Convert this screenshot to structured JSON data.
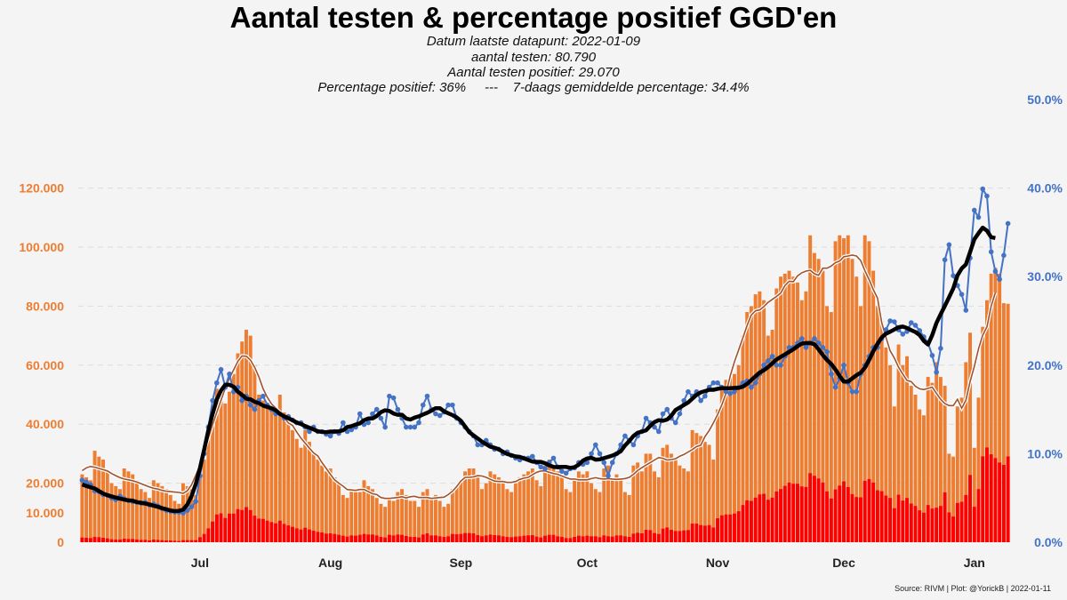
{
  "title": "Aantal testen & percentage positief GGD'en",
  "subtitle": {
    "line1": "Datum laatste datapunt: 2022-01-09",
    "line2": "aantal testen: 80.790",
    "line3": "Aantal testen positief: 29.070",
    "line4": "Percentage positief: 36%     ---    7-daags gemiddelde percentage: 34.4%"
  },
  "source": "Source: RIVM | Plot: @YorickB |  2022-01-11",
  "colors": {
    "tests": "#ED7D31",
    "positive": "#FF0000",
    "pct": "#4472C4",
    "pct_avg": "#000000",
    "tests_avg": "#A0522D"
  },
  "chart_data": {
    "type": "bar+line",
    "title": "Aantal testen & percentage positief GGD'en",
    "x_start_date": "2021-06-03",
    "x_end_date": "2022-01-09",
    "x_ticks": [
      {
        "label": "Jul",
        "date": "2021-07-01"
      },
      {
        "label": "Aug",
        "date": "2021-08-01"
      },
      {
        "label": "Sep",
        "date": "2021-09-01"
      },
      {
        "label": "Oct",
        "date": "2021-10-01"
      },
      {
        "label": "Nov",
        "date": "2021-11-01"
      },
      {
        "label": "Dec",
        "date": "2021-12-01"
      },
      {
        "label": "Jan",
        "date": "2022-01-01"
      }
    ],
    "y_left": {
      "range": [
        0,
        150000
      ],
      "ticks": [
        0,
        10000,
        20000,
        40000,
        60000,
        80000,
        100000,
        120000
      ],
      "tick_labels": [
        "0",
        "10.000",
        "20.000",
        "40.000",
        "60.000",
        "80.000",
        "100.000",
        "120.000"
      ]
    },
    "y_right": {
      "range": [
        0,
        50
      ],
      "ticks": [
        0,
        10,
        20,
        30,
        40,
        50
      ],
      "tick_labels": [
        "0.0%",
        "10.0%",
        "20.0%",
        "30.0%",
        "40.0%",
        "50.0%"
      ]
    },
    "grid": "horizontal dashed at left-axis ticks",
    "series_units": "tests and positive in thousands, pct in percent",
    "series": [
      {
        "name": "aantal testen",
        "type": "bar",
        "values": [
          23,
          22,
          21,
          31,
          29,
          28,
          24,
          20,
          19,
          18,
          25,
          24,
          23,
          21,
          18,
          17,
          15,
          21,
          20,
          19,
          18,
          16,
          14,
          13,
          20,
          19,
          18,
          16,
          22,
          28,
          36,
          44,
          52,
          50,
          47,
          51,
          57,
          64,
          68,
          72,
          70,
          60,
          50,
          48,
          47,
          45,
          44,
          50,
          44,
          40,
          38,
          35,
          32,
          38,
          34,
          30,
          28,
          26,
          24,
          25,
          22,
          20,
          16,
          15,
          18,
          17,
          17,
          21,
          19,
          18,
          15,
          13,
          12,
          15,
          14,
          17,
          18,
          16,
          14,
          14,
          12,
          17,
          18,
          15,
          16,
          14,
          12,
          13,
          18,
          19,
          21,
          24,
          25,
          25,
          22,
          18,
          20,
          24,
          23,
          22,
          20,
          18,
          17,
          20,
          22,
          23,
          24,
          25,
          21,
          19,
          26,
          28,
          26,
          24,
          22,
          18,
          17,
          22,
          24,
          23,
          24,
          20,
          18,
          17,
          25,
          26,
          21,
          23,
          21,
          17,
          16,
          26,
          27,
          24,
          30,
          30,
          24,
          22,
          32,
          33,
          30,
          28,
          26,
          25,
          24,
          38,
          37,
          36,
          34,
          33,
          28,
          45,
          52,
          55,
          56,
          57,
          60,
          70,
          78,
          80,
          84,
          85,
          82,
          70,
          72,
          86,
          90,
          91,
          92,
          90,
          88,
          82,
          85,
          104,
          98,
          96,
          92,
          80,
          78,
          102,
          104,
          103,
          104,
          96,
          90,
          80,
          104,
          102,
          92,
          80,
          75,
          66,
          60,
          46,
          67,
          60,
          63,
          53,
          50,
          45,
          43,
          56,
          54,
          61,
          56,
          53,
          30,
          29,
          46,
          49,
          61,
          71,
          32,
          49,
          73,
          82,
          91,
          93,
          91,
          81,
          80.79
        ]
      },
      {
        "name": "aantal testen positief",
        "type": "bar",
        "values": [
          1.6,
          1.5,
          1.4,
          1.8,
          1.7,
          1.5,
          1.3,
          1.0,
          0.9,
          0.9,
          1.2,
          1.1,
          1.1,
          0.9,
          0.8,
          0.8,
          0.6,
          0.9,
          0.8,
          0.7,
          0.6,
          0.6,
          0.5,
          0.4,
          0.7,
          0.7,
          0.7,
          0.7,
          1.7,
          2.8,
          4.7,
          7.0,
          9.4,
          9.8,
          8.2,
          9.7,
          9.7,
          11.2,
          10.9,
          11.9,
          10.9,
          9.0,
          8.0,
          7.9,
          7.3,
          6.8,
          6.4,
          7.3,
          6.2,
          5.7,
          5.2,
          4.7,
          4.3,
          4.9,
          4.3,
          3.9,
          3.5,
          3.3,
          2.9,
          3.0,
          2.8,
          2.5,
          2.2,
          1.9,
          2.3,
          2.2,
          2.5,
          2.8,
          2.6,
          2.6,
          2.3,
          1.8,
          1.6,
          2.5,
          2.3,
          2.6,
          2.5,
          2.1,
          1.8,
          1.8,
          1.6,
          2.6,
          3.0,
          2.3,
          2.3,
          2.0,
          1.8,
          2.0,
          2.8,
          2.7,
          2.8,
          3.1,
          3.1,
          3.0,
          2.4,
          2.0,
          2.3,
          2.6,
          2.4,
          2.3,
          2.0,
          1.8,
          1.7,
          1.9,
          2.0,
          2.2,
          2.3,
          2.4,
          1.9,
          1.6,
          2.2,
          2.5,
          2.5,
          2.0,
          1.8,
          1.4,
          1.4,
          1.8,
          2.2,
          2.0,
          2.2,
          2.0,
          2.0,
          1.7,
          2.3,
          2.0,
          1.9,
          2.3,
          2.3,
          2.0,
          1.8,
          2.9,
          3.2,
          3.0,
          4.2,
          4.1,
          3.1,
          2.8,
          4.6,
          5.0,
          4.2,
          3.8,
          3.8,
          4.0,
          4.1,
          6.3,
          6.3,
          5.8,
          5.6,
          5.8,
          5.0,
          8.1,
          9.1,
          9.4,
          9.4,
          9.7,
          10.5,
          12.6,
          14.2,
          14.0,
          15.1,
          16.2,
          16.4,
          14.4,
          15.1,
          17.2,
          18.0,
          19.1,
          20.2,
          19.8,
          19.8,
          18.9,
          18.7,
          23.4,
          22.5,
          21.6,
          20.2,
          17.2,
          14.8,
          17.9,
          19.2,
          20.6,
          18.7,
          16.3,
          15.3,
          15.2,
          20.8,
          21.4,
          20.2,
          17.6,
          17.3,
          15.8,
          15.0,
          11.5,
          16.1,
          14.1,
          15.0,
          13.1,
          12.3,
          10.8,
          10.0,
          12.6,
          11.4,
          11.7,
          12.3,
          16.9,
          10.1,
          8.7,
          13.3,
          13.7,
          16.0,
          22.8,
          12.0,
          18.0,
          29.1,
          32.1,
          29.8,
          28.5,
          27.0,
          26.2,
          29.07
        ]
      },
      {
        "name": "percentage positief",
        "type": "line",
        "axis": "right",
        "values": [
          7.0,
          6.8,
          6.5,
          5.8,
          5.7,
          5.4,
          5.3,
          5.0,
          4.8,
          5.2,
          4.9,
          4.7,
          4.6,
          4.5,
          4.4,
          4.5,
          4.2,
          4.3,
          4.1,
          3.8,
          3.6,
          3.5,
          3.4,
          3.4,
          3.3,
          3.6,
          4.0,
          4.6,
          7.5,
          10,
          13,
          16,
          18,
          19.5,
          17.5,
          19,
          17,
          17.5,
          16,
          16.5,
          15.5,
          15,
          16,
          16.5,
          15.5,
          15,
          14.5,
          14.5,
          14,
          14.2,
          13.8,
          13.5,
          13.5,
          13,
          12.5,
          13,
          12.5,
          12.5,
          12.2,
          12,
          12.5,
          12.3,
          13.5,
          12.5,
          12.7,
          13,
          14.5,
          13.3,
          13.5,
          14.5,
          15,
          14,
          13,
          16.5,
          16.3,
          15,
          14,
          13,
          13,
          13,
          13.5,
          15.5,
          16.5,
          15,
          14.5,
          14.3,
          14.7,
          15.5,
          15.5,
          14,
          13.5,
          13,
          12.5,
          12,
          11,
          11,
          11.5,
          11,
          10.5,
          10.5,
          10,
          10.2,
          9.8,
          9.5,
          9.3,
          9.5,
          9.5,
          9.7,
          9,
          8.5,
          8.3,
          9,
          9.5,
          8.5,
          8,
          7.8,
          8.3,
          8.4,
          9,
          8.8,
          9,
          10,
          11,
          10,
          9,
          7.5,
          9,
          10,
          11,
          12,
          11.5,
          11,
          12,
          12.5,
          14,
          13.5,
          13,
          12.5,
          14.5,
          15,
          14,
          13.5,
          14.5,
          16,
          17,
          16.5,
          17,
          16,
          16.5,
          17.5,
          18,
          18,
          17.5,
          17,
          16.8,
          17,
          17.5,
          18,
          18.2,
          17.5,
          18,
          19,
          20,
          20.5,
          21,
          20,
          20,
          21,
          22,
          22,
          22.5,
          23,
          22,
          22.5,
          23,
          22.5,
          22,
          21.5,
          19,
          17.5,
          18.5,
          20,
          18,
          17,
          17,
          19,
          20,
          21,
          22,
          22,
          23,
          24,
          25,
          24.9,
          24,
          23.5,
          23.8,
          24.8,
          24.5,
          23.9,
          23.2,
          22.5,
          21.1,
          19.2,
          21.9,
          31.9,
          33.6,
          30.1,
          29,
          28,
          26.2,
          32.1,
          37.5,
          36.7,
          39.9,
          39.1,
          32.8,
          30.6,
          29.7,
          32.4,
          36.0
        ]
      },
      {
        "name": "7-daags gemiddelde testen",
        "type": "line",
        "derived": "centered 7-day mean of aantal testen"
      },
      {
        "name": "7-daags gemiddelde percentage",
        "type": "line",
        "axis": "right",
        "derived": "centered 7-day mean of percentage positief"
      }
    ]
  }
}
